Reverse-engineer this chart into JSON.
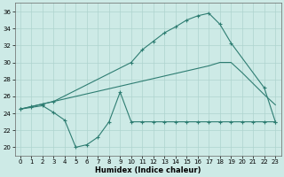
{
  "line1_x": [
    0,
    1,
    2,
    3,
    10,
    11,
    12,
    13,
    14,
    15,
    16,
    17,
    18,
    19,
    22,
    23
  ],
  "line1_y": [
    24.5,
    24.8,
    25.1,
    25.4,
    30.0,
    31.5,
    32.5,
    33.5,
    34.2,
    35.0,
    35.5,
    35.8,
    34.5,
    32.3,
    27.0,
    23.0
  ],
  "line2_x": [
    0,
    1,
    2,
    3,
    4,
    5,
    6,
    7,
    8,
    9,
    10,
    11,
    12,
    13,
    14,
    15,
    16,
    17,
    18,
    19,
    20,
    21,
    22,
    23
  ],
  "line2_y": [
    24.5,
    24.7,
    24.9,
    24.1,
    23.2,
    20.0,
    20.3,
    21.2,
    23.0,
    26.5,
    23.0,
    23.0,
    23.0,
    23.0,
    23.0,
    23.0,
    23.0,
    23.0,
    23.0,
    23.0,
    23.0,
    23.0,
    23.0,
    23.0
  ],
  "line3_x": [
    0,
    1,
    2,
    3,
    4,
    5,
    6,
    7,
    8,
    9,
    10,
    11,
    12,
    13,
    14,
    15,
    16,
    17,
    18,
    19,
    20,
    21,
    22,
    23
  ],
  "line3_y": [
    24.5,
    24.8,
    25.1,
    25.4,
    25.7,
    26.0,
    26.3,
    26.6,
    26.9,
    27.2,
    27.5,
    27.8,
    28.1,
    28.4,
    28.7,
    29.0,
    29.3,
    29.6,
    30.0,
    30.0,
    28.8,
    27.5,
    26.2,
    25.0
  ],
  "color": "#2e7d72",
  "bg_color": "#cdeae6",
  "grid_color": "#aed4cf",
  "xlabel": "Humidex (Indice chaleur)",
  "xlim": [
    -0.5,
    23.5
  ],
  "ylim": [
    19.0,
    37.0
  ],
  "yticks": [
    20,
    22,
    24,
    26,
    28,
    30,
    32,
    34,
    36
  ],
  "xticks": [
    0,
    1,
    2,
    3,
    4,
    5,
    6,
    7,
    8,
    9,
    10,
    11,
    12,
    13,
    14,
    15,
    16,
    17,
    18,
    19,
    20,
    21,
    22,
    23
  ]
}
